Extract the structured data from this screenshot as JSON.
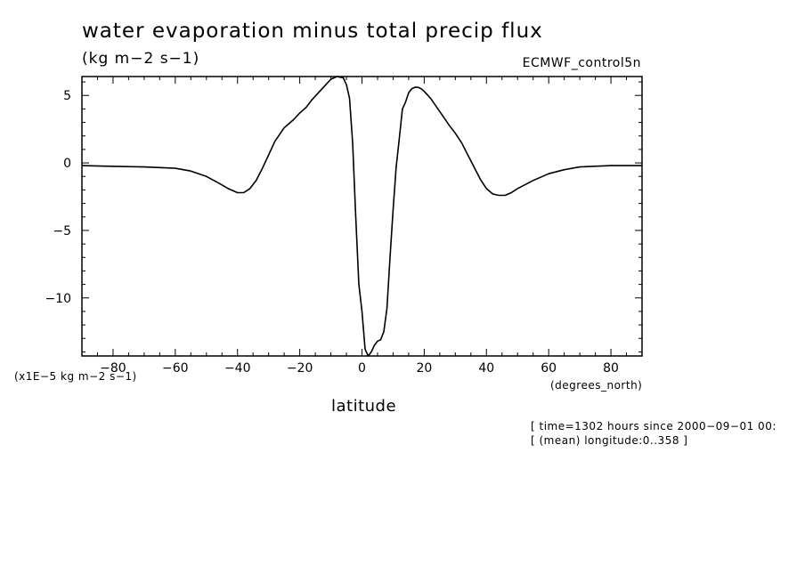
{
  "chart_data": {
    "type": "line",
    "title": "water evaporation minus total precip flux",
    "units_label": "(kg m−2 s−1)",
    "run_label": "ECMWF_control5n",
    "scale_label": "(x1E−5 kg m−2 s−1)",
    "xlabel": "latitude",
    "xunits": "(degrees_north)",
    "notes": [
      "[ time=1302 hours since 2000−09−01 00:",
      "[ (mean) longitude:0..358 ]"
    ],
    "xlim": [
      -90,
      90
    ],
    "ylim": [
      -14.3,
      6.4
    ],
    "xticks": [
      -80,
      -60,
      -40,
      -20,
      0,
      20,
      40,
      60,
      80
    ],
    "xtick_labels": [
      "−80",
      "−60",
      "−40",
      "−20",
      "0",
      "20",
      "40",
      "60",
      "80"
    ],
    "yticks": [
      5,
      0,
      -5,
      -10
    ],
    "ytick_labels": [
      "5",
      "0",
      "−5",
      "−10"
    ],
    "grid": false,
    "series": [
      {
        "x": [
          -90,
          -80,
          -70,
          -60,
          -55,
          -50,
          -46,
          -43,
          -40,
          -38,
          -36,
          -34,
          -32,
          -30,
          -28,
          -25,
          -22,
          -20,
          -18,
          -16,
          -14,
          -12,
          -10,
          -8,
          -6,
          -5,
          -4,
          -3,
          -2,
          -1,
          0,
          1,
          2,
          3,
          4,
          5,
          6,
          7,
          8,
          9,
          10,
          11,
          12,
          13,
          14,
          15,
          16,
          17,
          18,
          19,
          20,
          22,
          25,
          28,
          30,
          32,
          34,
          36,
          38,
          40,
          42,
          44,
          46,
          48,
          50,
          55,
          60,
          65,
          70,
          80,
          90
        ],
        "y": [
          -0.2,
          -0.25,
          -0.3,
          -0.4,
          -0.6,
          -1.0,
          -1.5,
          -1.9,
          -2.2,
          -2.2,
          -1.9,
          -1.3,
          -0.4,
          0.6,
          1.6,
          2.6,
          3.2,
          3.7,
          4.1,
          4.7,
          5.2,
          5.7,
          6.2,
          6.4,
          6.3,
          5.8,
          4.8,
          1.5,
          -4.0,
          -9.0,
          -11.0,
          -13.8,
          -14.3,
          -14.0,
          -13.5,
          -13.2,
          -13.1,
          -12.5,
          -10.8,
          -7.0,
          -3.5,
          -0.3,
          1.8,
          4.0,
          4.5,
          5.2,
          5.5,
          5.6,
          5.6,
          5.5,
          5.3,
          4.8,
          3.8,
          2.8,
          2.2,
          1.5,
          0.6,
          -0.3,
          -1.2,
          -1.9,
          -2.3,
          -2.4,
          -2.4,
          -2.2,
          -1.9,
          -1.3,
          -0.8,
          -0.5,
          -0.3,
          -0.2,
          -0.2
        ]
      }
    ]
  }
}
